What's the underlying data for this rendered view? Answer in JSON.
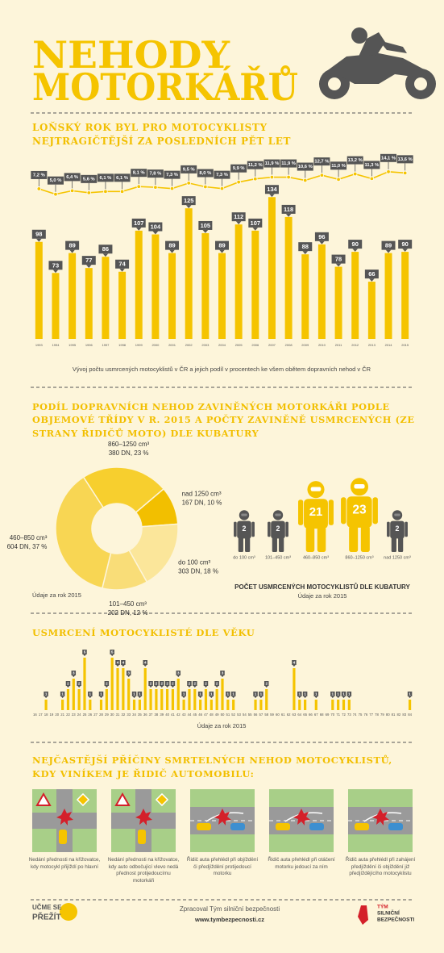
{
  "header": {
    "title": [
      "NEHODY",
      "MOTORKÁŘŮ"
    ]
  },
  "chart_data": [
    {
      "type": "bar",
      "title": "LOŇSKÝ ROK BYL PRO MOTOCYKLISTY NEJTRAGIČTĚJŠÍ ZA POSLEDNÍCH PĚT LET",
      "caption": "Vývoj počtu usmrcených motocyklistů v ČR a jejich podíl v procentech ke všem obětem dopravních nehod v ČR",
      "categories": [
        "1993",
        "1994",
        "1995",
        "1996",
        "1997",
        "1998",
        "1999",
        "2000",
        "2001",
        "2002",
        "2003",
        "2004",
        "2005",
        "2006",
        "2007",
        "2008",
        "2009",
        "2010",
        "2011",
        "2012",
        "2013",
        "2014",
        "2015"
      ],
      "series": [
        {
          "color": "#f5c400",
          "values": [
            98,
            73,
            89,
            77,
            86,
            74,
            107,
            104,
            89,
            125,
            105,
            89,
            112,
            107,
            134,
            118,
            88,
            96,
            78,
            90,
            66,
            89,
            90
          ]
        },
        {
          "type": "line",
          "axis": "y2",
          "color": "#f5c400",
          "values": [
            7.2,
            5.0,
            6.4,
            5.6,
            6.1,
            6.1,
            8.1,
            7.8,
            7.3,
            9.5,
            8.0,
            7.3,
            9.9,
            11.2,
            11.9,
            11.9,
            10.6,
            12.7,
            11.0,
            13.2,
            11.3,
            14.1,
            13.6
          ],
          "value_labels": [
            "7,2 %",
            "5,0 %",
            "6,4 %",
            "5,6 %",
            "6,1 %",
            "6,1 %",
            "8,1 %",
            "7,8 %",
            "7,3 %",
            "9,5 %",
            "8,0 %",
            "7,3 %",
            "9,9 %",
            "11,2 %",
            "11,9 %",
            "11,9 %",
            "10,6 %",
            "12,7 %",
            "11,0 %",
            "13,2 %",
            "11,3 %",
            "14,1 %",
            "13,6 %"
          ]
        }
      ],
      "ylim": [
        20,
        140
      ],
      "y2lim": [
        0,
        16
      ]
    },
    {
      "type": "pie",
      "title": "PODÍL DOPRAVNÍCH NEHOD ZAVINĚNÝCH MOTORKÁŘI PODLE OBJEMOVÉ TŘÍDY V R. 2015 A POČTY ZAVINĚNĚ USMRCENÝCH (ZE STRANY ŘIDIČŮ MOTO) DLE KUBATURY",
      "note": "Údaje za rok 2015",
      "categories": [
        "860–1250 cm³",
        "nad 1250 cm³",
        "do 100 cm³",
        "101–450 cm³",
        "460–850 cm³"
      ],
      "values": [
        23,
        10,
        18,
        12,
        37
      ],
      "value_labels": [
        "380 DN, 23 %",
        "167 DN, 10 %",
        "303 DN, 18 %",
        "202 DN, 12 %",
        "604 DN, 37 %"
      ],
      "colors": [
        "#f7cf2e",
        "#f2bf00",
        "#fbe69a",
        "#f9dd78",
        "#f8d653"
      ]
    },
    {
      "type": "pictogram",
      "title": "POČET USMRCENÝCH MOTOCYKLISTŮ DLE KUBATURY",
      "note": "Údaje za rok 2015",
      "categories": [
        "do 100 cm³",
        "101–450 cm³",
        "460–850 cm³",
        "860–1250 cm³",
        "nad 1250 cm³"
      ],
      "values": [
        2,
        2,
        21,
        23,
        2
      ],
      "colors": [
        "#555555",
        "#555555",
        "#f5c400",
        "#f5c400",
        "#555555"
      ]
    },
    {
      "type": "bar",
      "title": "USMRCENÍ MOTOCYKLISTÉ DLE VĚKU",
      "note": "Údaje za rok 2015",
      "categories": [
        "16",
        "17",
        "18",
        "19",
        "20",
        "21",
        "22",
        "23",
        "24",
        "25",
        "26",
        "27",
        "28",
        "29",
        "30",
        "31",
        "32",
        "33",
        "34",
        "35",
        "36",
        "37",
        "38",
        "39",
        "40",
        "41",
        "42",
        "43",
        "44",
        "45",
        "46",
        "47",
        "48",
        "49",
        "50",
        "51",
        "52",
        "53",
        "54",
        "55",
        "56",
        "57",
        "58",
        "59",
        "60",
        "61",
        "62",
        "63",
        "64",
        "65",
        "66",
        "67",
        "68",
        "69",
        "70",
        "71",
        "72",
        "73",
        "74",
        "75",
        "76",
        "77",
        "78",
        "79",
        "80",
        "81",
        "82",
        "83",
        "84"
      ],
      "values": [
        0,
        0,
        1,
        0,
        0,
        1,
        2,
        3,
        2,
        5,
        1,
        0,
        1,
        2,
        5,
        4,
        4,
        3,
        1,
        1,
        4,
        2,
        2,
        2,
        2,
        2,
        3,
        1,
        2,
        2,
        1,
        2,
        1,
        2,
        3,
        1,
        1,
        0,
        0,
        0,
        1,
        1,
        2,
        0,
        0,
        0,
        0,
        4,
        1,
        1,
        0,
        1,
        0,
        0,
        1,
        1,
        1,
        1,
        0,
        0,
        0,
        0,
        0,
        0,
        0,
        0,
        0,
        0,
        1
      ],
      "color": "#f5c400",
      "ylim": [
        0,
        6
      ]
    }
  ],
  "causes": {
    "title": "NEJČASTĚJŠÍ PŘÍČINY SMRTELNÝCH NEHOD MOTOCYKLISTŮ, KDY VINÍKEM JE ŘIDIČ AUTOMOBILU:",
    "items": [
      "Nedání přednosti na křižovatce, kdy motocykl přijíždí po hlavní",
      "Nedání přednosti na křižovatce, kdy auto odbočující vlevo nedá přednost protijedoucímu motorkáři",
      "Řidič auta přehlédl při objíždění či předjíždění protijedoucí motorku",
      "Řidič auta přehlédl při otáčení motorku jedoucí za ním",
      "Řidič auta přehlédl při zahájení předjíždění či objíždění již předjíždějícího motocyklistu"
    ]
  },
  "footer": {
    "logo_left": [
      "UČME SE",
      "PŘEŽÍT"
    ],
    "credit": "Zpracoval Tým silniční bezpečnosti",
    "url": "www.tymbezpecnosti.cz",
    "logo_right": [
      "TÝM",
      "SILNIČNÍ",
      "BEZPEČNOSTI"
    ]
  }
}
